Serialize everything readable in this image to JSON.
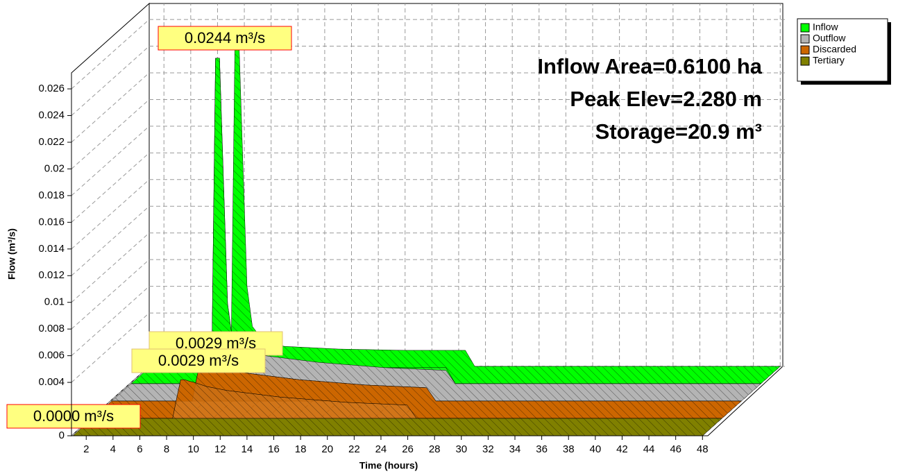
{
  "chart_data": {
    "type": "area3d",
    "x_label": "Time  (hours)",
    "y_label": "Flow  (m³/s)",
    "annotations": [
      "Inflow Area=0.6100 ha",
      "Peak Elev=2.280 m",
      "Storage=20.9 m³"
    ],
    "x": [
      1,
      7.0,
      7.3,
      7.6,
      7.9,
      8.2,
      8.6,
      9.5,
      11,
      15,
      20,
      24.5,
      25.2,
      48
    ],
    "series": [
      {
        "name": "Inflow",
        "color": "#00ff00",
        "values": [
          0,
          0,
          0.0244,
          0.0244,
          0.015,
          0.006,
          0.003,
          0.0018,
          0.0015,
          0.0013,
          0.0012,
          0.0012,
          0,
          0
        ],
        "value_labels": [
          null,
          null,
          "0.0244 m³/s",
          null,
          null,
          null,
          null,
          null,
          null,
          null,
          null,
          null,
          null,
          null
        ]
      },
      {
        "name": "Outflow",
        "color": "#b4b4b4",
        "values": [
          0,
          0,
          0.0015,
          0.0029,
          0.0029,
          0.0028,
          0.0027,
          0.0024,
          0.0021,
          0.0016,
          0.0012,
          0.001,
          0,
          0
        ],
        "value_labels": [
          null,
          null,
          null,
          "0.0029 m³/s",
          null,
          null,
          null,
          null,
          null,
          null,
          null,
          null,
          null,
          null
        ]
      },
      {
        "name": "Discarded",
        "color": "#cc6600",
        "values": [
          0,
          0,
          0.0015,
          0.0029,
          0.0029,
          0.0028,
          0.0027,
          0.0024,
          0.0021,
          0.0016,
          0.0012,
          0.001,
          0,
          0
        ],
        "value_labels": [
          null,
          null,
          null,
          "0.0029 m³/s",
          null,
          null,
          null,
          null,
          null,
          null,
          null,
          null,
          null,
          null
        ]
      },
      {
        "name": "Tertiary",
        "color": "#808000",
        "values": [
          0,
          0,
          0,
          0,
          0,
          0,
          0,
          0,
          0,
          0,
          0,
          0,
          0,
          0
        ],
        "value_labels": [
          "0.0000 m³/s",
          null,
          null,
          null,
          null,
          null,
          null,
          null,
          null,
          null,
          null,
          null,
          null,
          null
        ]
      }
    ],
    "xlim": [
      0.9,
      48.4
    ],
    "xticks": [
      2,
      4,
      6,
      8,
      10,
      12,
      14,
      16,
      18,
      20,
      22,
      24,
      26,
      28,
      30,
      32,
      34,
      36,
      38,
      40,
      42,
      44,
      46,
      48
    ],
    "ylim": [
      0,
      0.0272
    ],
    "yticks": [
      0,
      0.004,
      0.006,
      0.008,
      0.01,
      0.012,
      0.014,
      0.016,
      0.018,
      0.02,
      0.022,
      0.024,
      0.026
    ],
    "grid": true,
    "legend": "top-right"
  }
}
